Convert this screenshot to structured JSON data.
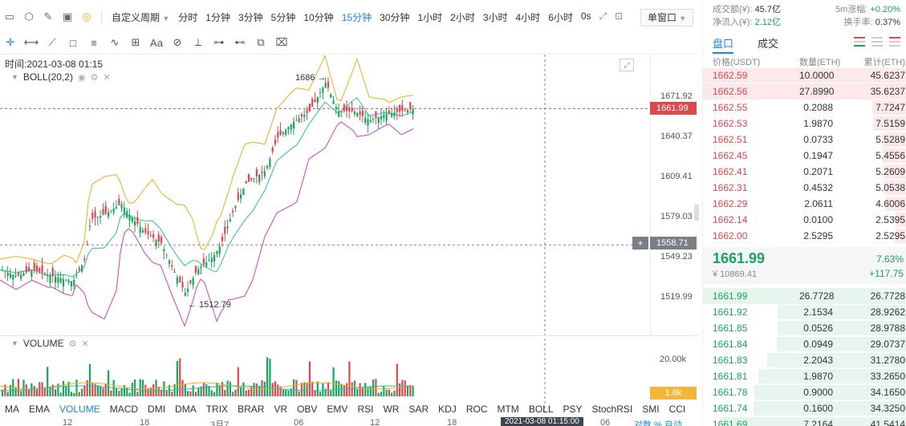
{
  "toolbar": {
    "custom_period": "自定义周期",
    "periods": [
      "分时",
      "1分钟",
      "3分钟",
      "5分钟",
      "10分钟",
      "15分钟",
      "30分钟",
      "1小时",
      "2小时",
      "3小时",
      "4小时",
      "6小时",
      "0s"
    ],
    "active_period": "15分钟",
    "single_window": "单窗口"
  },
  "chart": {
    "time_label": "时间:2021-03-08 01:15",
    "boll_label": "BOLL(20,2)",
    "price_ticks": [
      "1671.92",
      "1640.37",
      "1609.41",
      "1579.03",
      "1549.23",
      "1519.99"
    ],
    "current_price_tag": "1661.99",
    "crosshair_price_tag": "1558.71",
    "high_annotation": "1686",
    "low_annotation": "1512.79",
    "volume_label": "VOLUME",
    "volume_tick": "20.00k",
    "volume_tag": "1.8k",
    "indicators": [
      "MA",
      "EMA",
      "VOLUME",
      "MACD",
      "DMI",
      "DMA",
      "TRIX",
      "BRAR",
      "VR",
      "OBV",
      "EMV",
      "RSI",
      "WR",
      "SAR",
      "KDJ",
      "ROC",
      "MTM",
      "BOLL",
      "PSY",
      "StochRSI",
      "SMI",
      "CCI"
    ],
    "active_indicator": "VOLUME",
    "time_ticks": [
      "12",
      "18",
      "3月7",
      "06",
      "12",
      "18",
      "06"
    ],
    "time_tag": "2021-03-08 01:15:00",
    "axis_right_labels": "对数  %  自动",
    "colors": {
      "up": "#1aa360",
      "down": "#e0474c",
      "boll_upper": "#e8b020",
      "boll_mid": "#2cbfa0",
      "boll_lower": "#d040c0"
    }
  },
  "stats": {
    "turnover_label": "成交额(¥):",
    "turnover_value": "45.7亿",
    "change5m_label": "5m涨幅:",
    "change5m_value": "+0.20%",
    "inflow_label": "净流入(¥):",
    "inflow_value": "2.12亿",
    "turnover_rate_label": "换手率:",
    "turnover_rate_value": "0.37%"
  },
  "book": {
    "tab_book": "盘口",
    "tab_trades": "成交",
    "col_price": "价格(USDT)",
    "col_amount": "数量(ETH)",
    "col_total": "累计(ETH)",
    "asks": [
      {
        "price": "1662.59",
        "amount": "10.0000",
        "total": "45.6237"
      },
      {
        "price": "1662.56",
        "amount": "27.8990",
        "total": "35.6237"
      },
      {
        "price": "1662.55",
        "amount": "0.2088",
        "total": "7.7247"
      },
      {
        "price": "1662.53",
        "amount": "1.9870",
        "total": "7.5159"
      },
      {
        "price": "1662.51",
        "amount": "0.0733",
        "total": "5.5289"
      },
      {
        "price": "1662.45",
        "amount": "0.1947",
        "total": "5.4556"
      },
      {
        "price": "1662.41",
        "amount": "0.2071",
        "total": "5.2609"
      },
      {
        "price": "1662.31",
        "amount": "0.4532",
        "total": "5.0538"
      },
      {
        "price": "1662.29",
        "amount": "2.0611",
        "total": "4.6006"
      },
      {
        "price": "1662.14",
        "amount": "0.0100",
        "total": "2.5395"
      },
      {
        "price": "1662.00",
        "amount": "2.5295",
        "total": "2.5295"
      }
    ],
    "last_price": "1661.99",
    "last_cny": "¥ 10869.41",
    "last_pct": "7.63%",
    "last_change": "+117.75",
    "bids": [
      {
        "price": "1661.99",
        "amount": "26.7728",
        "total": "26.7728"
      },
      {
        "price": "1661.92",
        "amount": "2.1534",
        "total": "28.9262"
      },
      {
        "price": "1661.85",
        "amount": "0.0526",
        "total": "28.9788"
      },
      {
        "price": "1661.84",
        "amount": "0.0949",
        "total": "29.0737"
      },
      {
        "price": "1661.83",
        "amount": "2.2043",
        "total": "31.2780"
      },
      {
        "price": "1661.81",
        "amount": "1.9870",
        "total": "33.2650"
      },
      {
        "price": "1661.78",
        "amount": "0.9000",
        "total": "34.1650"
      },
      {
        "price": "1661.74",
        "amount": "0.1600",
        "total": "34.3250"
      },
      {
        "price": "1661.69",
        "amount": "7.2164",
        "total": "41.5414"
      }
    ]
  }
}
